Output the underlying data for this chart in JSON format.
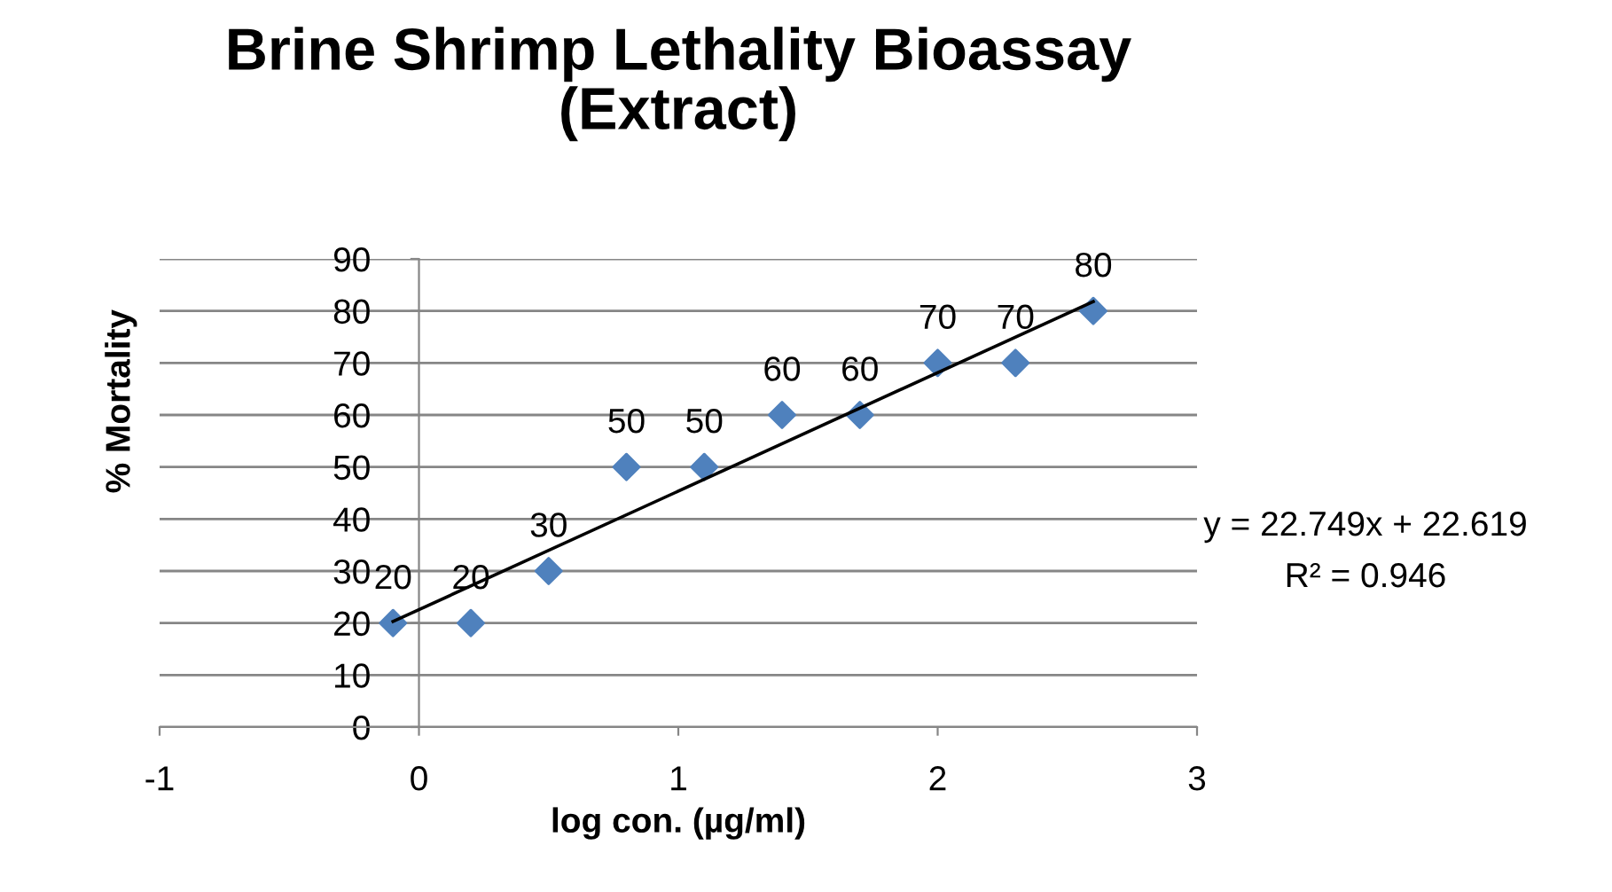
{
  "chart_data": {
    "type": "scatter",
    "title": "Brine Shrimp Lethality Bioassay\n(Extract)",
    "xlabel": "log con. (µg/ml)",
    "ylabel": "% Mortality",
    "series": [
      {
        "color": "#4f81bd",
        "marker": "diamond",
        "x": [
          -0.1,
          0.2,
          0.5,
          0.8,
          1.1,
          1.4,
          1.7,
          2.0,
          2.3,
          2.6
        ],
        "values": [
          20,
          20,
          30,
          50,
          50,
          60,
          60,
          70,
          70,
          80
        ],
        "value_labels": [
          "20",
          "20",
          "30",
          "50",
          "50",
          "60",
          "60",
          "70",
          "70",
          "80"
        ]
      },
      {
        "type": "line",
        "color": "#000000",
        "marker": "none",
        "line_style": "solid",
        "x": [
          -0.1,
          2.6
        ],
        "values": [
          20.3,
          81.8
        ]
      }
    ],
    "annotations": [
      "y = 22.749x + 22.619",
      "R² = 0.946"
    ],
    "xlim": [
      -1,
      3
    ],
    "xticks": [
      -1,
      0,
      1,
      2,
      3
    ],
    "ylim": [
      0,
      90
    ],
    "yticks": [
      0,
      10,
      20,
      30,
      40,
      50,
      60,
      70,
      80,
      90
    ],
    "grid": "y",
    "legend": false
  }
}
